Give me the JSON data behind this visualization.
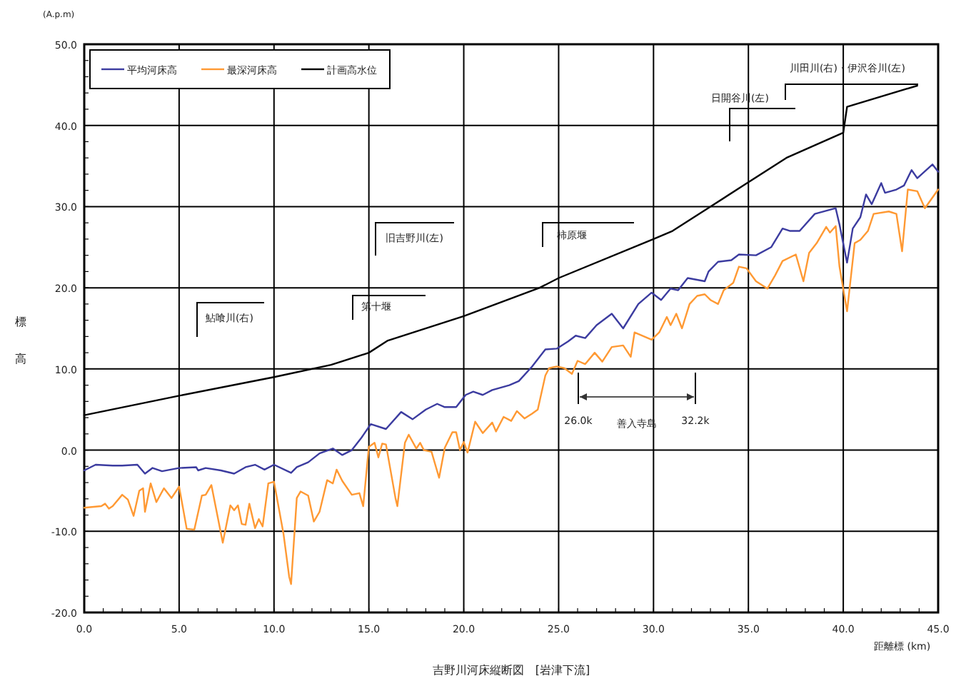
{
  "chart_data": {
    "type": "line",
    "title": "吉野川河床縦断図　[岩津下流]",
    "xlabel": "距離標 (km)",
    "ylabel": "標高",
    "xlim": [
      0,
      45
    ],
    "ylim": [
      -20,
      50
    ],
    "xticks": [
      {
        "value": 0,
        "label": "0.0"
      },
      {
        "value": 5,
        "label": "5.0"
      },
      {
        "value": 10,
        "label": "10.0"
      },
      {
        "value": 15,
        "label": "15.0"
      },
      {
        "value": 20,
        "label": "20.0"
      },
      {
        "value": 25,
        "label": "25.0"
      },
      {
        "value": 30,
        "label": "30.0"
      },
      {
        "value": 35,
        "label": "35.0"
      },
      {
        "value": 40,
        "label": "40.0"
      },
      {
        "value": 45,
        "label": "45.0"
      }
    ],
    "yticks": [
      {
        "value": -20,
        "label": "-20.0"
      },
      {
        "value": -10,
        "label": "-10.0"
      },
      {
        "value": 0,
        "label": "0.0"
      },
      {
        "value": 10,
        "label": "10.0"
      },
      {
        "value": 20,
        "label": "20.0"
      },
      {
        "value": 30,
        "label": "30.0"
      },
      {
        "value": 40,
        "label": "40.0"
      },
      {
        "value": 50,
        "label": "50.0"
      }
    ],
    "grid": true,
    "legend": "top left",
    "marker": "none",
    "line_style": "solid",
    "series": [
      {
        "name": "平均河床高",
        "color": "#3c3ca0",
        "x": [
          0,
          0.6,
          1.5,
          2.0,
          2.8,
          3.2,
          3.6,
          4.1,
          5.0,
          5.9,
          6.0,
          6.4,
          7.2,
          7.9,
          8.5,
          9.0,
          9.5,
          10.0,
          10.9,
          11.2,
          11.8,
          12.4,
          13.1,
          13.6,
          14.1,
          14.6,
          15.1,
          15.9,
          16.7,
          17.3,
          18.0,
          18.6,
          19.0,
          19.6,
          20.1,
          20.5,
          21.0,
          21.5,
          22.4,
          22.9,
          23.6,
          24.3,
          24.9,
          25.5,
          25.9,
          26.4,
          27.0,
          27.8,
          28.4,
          29.2,
          29.9,
          30.4,
          30.9,
          31.3,
          31.8,
          32.7,
          32.9,
          33.4,
          34.1,
          34.5,
          35.4,
          36.2,
          36.8,
          37.2,
          37.7,
          38.5,
          39.6,
          39.8,
          40.2,
          40.5,
          40.9,
          41.2,
          41.5,
          42.0,
          42.2,
          42.8,
          43.2,
          43.6,
          43.9,
          44.7,
          45.0
        ],
        "values": [
          -2.5,
          -1.8,
          -1.9,
          -1.9,
          -1.8,
          -2.9,
          -2.2,
          -2.6,
          -2.2,
          -2.1,
          -2.5,
          -2.2,
          -2.5,
          -2.9,
          -2.1,
          -1.8,
          -2.4,
          -1.8,
          -2.8,
          -2.1,
          -1.5,
          -0.4,
          0.2,
          -0.6,
          0,
          1.5,
          3.2,
          2.6,
          4.7,
          3.8,
          5.0,
          5.7,
          5.3,
          5.3,
          6.8,
          7.2,
          6.8,
          7.4,
          8.0,
          8.5,
          10.3,
          12.4,
          12.5,
          13.4,
          14.1,
          13.8,
          15.4,
          16.8,
          15.0,
          18.0,
          19.4,
          18.5,
          19.9,
          19.7,
          21.2,
          20.8,
          22.0,
          23.2,
          23.4,
          24.1,
          24.0,
          25.0,
          27.3,
          27.0,
          27.0,
          29.1,
          29.8,
          27.8,
          23.1,
          27.3,
          28.7,
          31.5,
          30.3,
          32.9,
          31.7,
          32.1,
          32.6,
          34.5,
          33.5,
          35.2,
          34.3
        ]
      },
      {
        "name": "最深河床高",
        "color": "#ff9933",
        "x": [
          0,
          0.9,
          1.1,
          1.3,
          1.5,
          2.0,
          2.3,
          2.6,
          2.9,
          3.1,
          3.2,
          3.5,
          3.8,
          4.2,
          4.6,
          5.0,
          5.4,
          5.8,
          6.2,
          6.4,
          6.7,
          7.3,
          7.7,
          7.9,
          8.1,
          8.3,
          8.5,
          8.7,
          9.0,
          9.2,
          9.4,
          9.7,
          10.0,
          10.5,
          10.8,
          10.9,
          11.2,
          11.4,
          11.8,
          12.1,
          12.4,
          12.8,
          13.1,
          13.3,
          13.6,
          14.1,
          14.5,
          14.7,
          15.0,
          15.3,
          15.5,
          15.7,
          15.9,
          16.4,
          16.5,
          16.9,
          17.1,
          17.5,
          17.7,
          17.9,
          18.3,
          18.7,
          19.0,
          19.4,
          19.6,
          19.8,
          20.0,
          20.2,
          20.6,
          21.0,
          21.5,
          21.7,
          22.1,
          22.5,
          22.8,
          23.2,
          23.6,
          23.9,
          24.3,
          24.5,
          24.9,
          25.3,
          25.7,
          26.0,
          26.4,
          26.9,
          27.3,
          27.8,
          28.4,
          28.8,
          29.0,
          29.9,
          30.3,
          30.7,
          30.9,
          31.2,
          31.5,
          31.9,
          32.3,
          32.7,
          33.0,
          33.4,
          33.7,
          34.2,
          34.5,
          34.9,
          35.4,
          36.0,
          36.4,
          36.8,
          37.5,
          37.9,
          38.2,
          38.6,
          39.1,
          39.3,
          39.6,
          39.8,
          40.2,
          40.6,
          40.9,
          41.3,
          41.6,
          42.4,
          42.8,
          43.1,
          43.4,
          43.9,
          44.3,
          45.0
        ],
        "values": [
          -7.1,
          -6.9,
          -6.6,
          -7.2,
          -6.9,
          -5.5,
          -6.1,
          -8.1,
          -5.0,
          -4.7,
          -7.6,
          -4.1,
          -6.4,
          -4.7,
          -5.9,
          -4.5,
          -9.7,
          -9.8,
          -5.6,
          -5.5,
          -4.3,
          -11.4,
          -6.8,
          -7.4,
          -6.8,
          -9.1,
          -9.2,
          -6.6,
          -9.6,
          -8.5,
          -9.4,
          -4.1,
          -3.9,
          -10.3,
          -15.6,
          -16.5,
          -5.9,
          -5.1,
          -5.6,
          -8.8,
          -7.6,
          -3.7,
          -4.1,
          -2.4,
          -3.8,
          -5.5,
          -5.3,
          -6.9,
          0.4,
          0.9,
          -0.9,
          0.8,
          0.7,
          -5.9,
          -6.9,
          0.9,
          1.9,
          0.2,
          0.9,
          0,
          -0.2,
          -3.4,
          0.3,
          2.2,
          2.2,
          0,
          1.0,
          -0.3,
          3.5,
          2.1,
          3.4,
          2.3,
          4.1,
          3.6,
          4.8,
          3.9,
          4.5,
          5.0,
          9.2,
          10.1,
          10.3,
          10.1,
          9.4,
          11.0,
          10.6,
          12.0,
          10.9,
          12.7,
          12.9,
          11.5,
          14.5,
          13.6,
          14.5,
          16.4,
          15.4,
          16.8,
          15.0,
          18.0,
          19.0,
          19.2,
          18.5,
          18.0,
          19.7,
          20.6,
          22.6,
          22.4,
          20.8,
          19.9,
          21.5,
          23.3,
          24.1,
          20.8,
          24.3,
          25.5,
          27.5,
          26.8,
          27.6,
          22.6,
          17.1,
          25.5,
          25.9,
          27.0,
          29.1,
          29.4,
          29.1,
          24.5,
          32.1,
          31.9,
          29.8,
          32.1
        ]
      },
      {
        "name": "計画高水位",
        "color": "#000000",
        "x": [
          0,
          5,
          10,
          13,
          15,
          16,
          20,
          24,
          25,
          30,
          31,
          33,
          35,
          37,
          40.0,
          40.2,
          43.9
        ],
        "values": [
          4.3,
          6.7,
          9.0,
          10.5,
          12.0,
          13.5,
          16.5,
          20.0,
          21.2,
          26.0,
          27.0,
          30.0,
          33.0,
          36.0,
          39.1,
          42.3,
          44.9
        ]
      }
    ],
    "annotations": [
      "鮎喰川(右)",
      "第十堰",
      "旧吉野川(左)",
      "柿原堰",
      "日開谷川(左)",
      "川田川(右)・伊沢谷川(左)",
      "26.0k",
      "32.2k",
      "善入寺島",
      "(A.p.m)"
    ]
  }
}
